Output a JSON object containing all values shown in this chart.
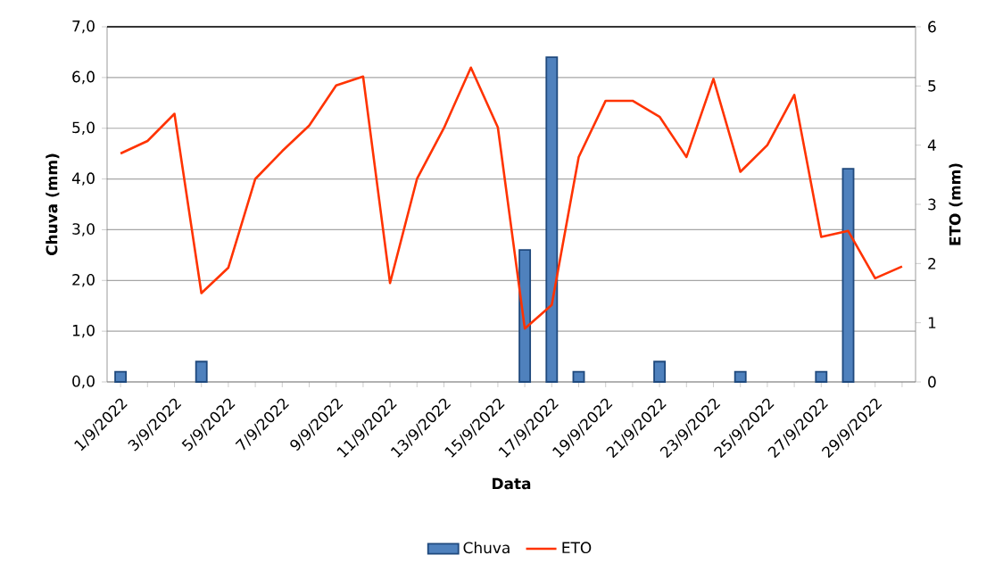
{
  "chart_data": {
    "type": "bar",
    "xlabel": "Data",
    "ylabel": "Chuva (mm)",
    "y2label": "ETO (mm)",
    "categories": [
      "1/9/2022",
      null,
      "3/9/2022",
      null,
      "5/9/2022",
      null,
      "7/9/2022",
      null,
      "9/9/2022",
      null,
      "11/9/2022",
      null,
      "13/9/2022",
      null,
      "15/9/2022",
      null,
      "17/9/2022",
      null,
      "19/9/2022",
      null,
      "21/9/2022",
      null,
      "23/9/2022",
      null,
      "25/9/2022",
      null,
      "27/9/2022",
      null,
      "29/9/2022",
      null
    ],
    "series": [
      {
        "name": "Chuva",
        "color": "#4f81bd",
        "values": [
          0.2,
          null,
          null,
          0.4,
          null,
          null,
          null,
          null,
          null,
          null,
          null,
          null,
          null,
          null,
          null,
          2.6,
          6.4,
          0.2,
          null,
          null,
          0.4,
          null,
          null,
          0.2,
          null,
          null,
          0.2,
          4.2,
          null,
          null
        ]
      },
      {
        "name": "ETO",
        "type": "line",
        "axis": "y2",
        "color": "#ff3300",
        "values": [
          3.86,
          4.07,
          4.53,
          1.5,
          1.93,
          3.43,
          3.9,
          4.33,
          5.01,
          5.16,
          1.67,
          3.43,
          4.29,
          5.31,
          4.3,
          0.9,
          1.3,
          3.8,
          4.75,
          4.75,
          4.48,
          3.8,
          5.12,
          3.55,
          4.0,
          4.85,
          2.45,
          2.55,
          1.75,
          1.95
        ]
      }
    ],
    "ylim": [
      0,
      7
    ],
    "yticks": [
      {
        "value": 0,
        "label": "0,0"
      },
      {
        "value": 1,
        "label": "1,0"
      },
      {
        "value": 2,
        "label": "2,0"
      },
      {
        "value": 3,
        "label": "3,0"
      },
      {
        "value": 4,
        "label": "4,0"
      },
      {
        "value": 5,
        "label": "5,0"
      },
      {
        "value": 6,
        "label": "6,0"
      },
      {
        "value": 7,
        "label": "7,0"
      }
    ],
    "y2lim": [
      0,
      6
    ],
    "y2ticks": [
      0,
      1,
      2,
      3,
      4,
      5,
      6
    ],
    "grid": "y",
    "legend": "bottom"
  }
}
